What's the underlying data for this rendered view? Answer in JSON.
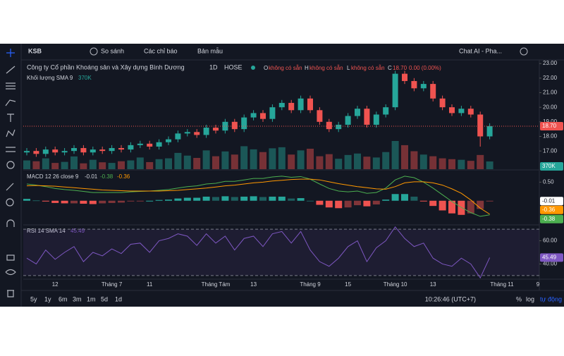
{
  "toolbar": {
    "symbol": "KSB",
    "compare": "So sánh",
    "indicators": "Các chỉ báo",
    "templates": "Bản mẫu",
    "chat": "Chat AI - Pha..."
  },
  "legend": {
    "name": "Công ty Cổ phần Khoáng sản và Xây dựng Bình Dương",
    "interval": "1D",
    "exchange": "HOSE",
    "o_key": "O",
    "o": "không có sẵn",
    "h_key": "H",
    "h": "không có sẵn",
    "l_key": "L",
    "l": "không có sẵn",
    "c_key": "C",
    "c": "18.70",
    "change": "0.00 (0.00%)"
  },
  "bottom_bar": {
    "ranges": [
      "5y",
      "1y",
      "6m",
      "3m",
      "1m",
      "5d",
      "1d"
    ],
    "time": "10:26:46 (UTC+7)",
    "percent": "%",
    "log": "log",
    "auto": "tự động"
  },
  "chart_data": [
    {
      "type": "candlestick",
      "up_color": "#26a69a",
      "down_color": "#ef5350",
      "categories": [
        null,
        null,
        null,
        "12",
        null,
        null,
        null,
        null,
        null,
        "Tháng 7",
        null,
        null,
        null,
        "11",
        null,
        null,
        null,
        null,
        null,
        null,
        "Tháng Tám",
        null,
        null,
        null,
        "13",
        null,
        null,
        null,
        null,
        null,
        "Tháng 9",
        null,
        null,
        null,
        "15",
        null,
        null,
        null,
        null,
        "Tháng 10",
        null,
        null,
        null,
        "13",
        null,
        null,
        null,
        null,
        null,
        null
      ],
      "future_labels": [
        "Tháng 11",
        "9"
      ],
      "open": [
        16.9,
        17.0,
        16.8,
        17.1,
        16.9,
        17.0,
        17.2,
        16.9,
        17.1,
        17.0,
        17.2,
        17.1,
        17.4,
        17.5,
        17.3,
        17.6,
        17.8,
        18.2,
        18.3,
        18.1,
        18.6,
        18.4,
        19.0,
        18.5,
        19.3,
        19.6,
        19.2,
        20.0,
        20.3,
        19.8,
        20.6,
        19.8,
        19.0,
        18.5,
        18.8,
        19.4,
        19.9,
        18.8,
        19.5,
        20.0,
        22.3,
        21.8,
        21.3,
        21.6,
        20.6,
        20.0,
        19.6,
        19.9,
        19.5,
        18.0
      ],
      "close": [
        17.0,
        16.8,
        17.1,
        16.9,
        17.0,
        17.2,
        16.9,
        17.1,
        17.0,
        17.2,
        17.1,
        17.4,
        17.5,
        17.3,
        17.6,
        17.8,
        18.2,
        18.3,
        18.1,
        18.6,
        18.4,
        19.0,
        18.5,
        19.3,
        19.6,
        19.2,
        20.0,
        20.3,
        19.8,
        20.6,
        19.8,
        19.0,
        18.5,
        18.8,
        19.4,
        19.9,
        18.8,
        19.5,
        20.0,
        22.3,
        21.8,
        21.3,
        21.6,
        20.6,
        20.0,
        19.6,
        19.9,
        19.5,
        18.0,
        18.7
      ],
      "high": [
        17.2,
        17.2,
        17.3,
        17.3,
        17.2,
        17.4,
        17.4,
        17.3,
        17.3,
        17.4,
        17.4,
        17.6,
        17.7,
        17.7,
        17.8,
        18.0,
        18.4,
        18.5,
        18.5,
        18.8,
        18.8,
        19.2,
        19.2,
        19.5,
        19.8,
        19.8,
        20.2,
        20.5,
        20.5,
        20.8,
        20.8,
        20.0,
        19.2,
        19.0,
        19.6,
        20.1,
        20.1,
        19.7,
        20.2,
        22.5,
        22.5,
        22.0,
        21.8,
        21.8,
        20.8,
        20.2,
        20.1,
        20.1,
        19.7,
        18.9
      ],
      "low": [
        16.7,
        16.6,
        16.6,
        16.7,
        16.7,
        16.8,
        16.7,
        16.7,
        16.8,
        16.8,
        16.9,
        16.9,
        17.2,
        17.1,
        17.1,
        17.4,
        17.6,
        18.0,
        17.9,
        17.9,
        18.2,
        18.2,
        18.3,
        18.3,
        19.1,
        19.0,
        19.0,
        19.8,
        19.6,
        19.6,
        19.6,
        18.8,
        18.3,
        18.3,
        18.6,
        19.2,
        18.6,
        18.6,
        19.3,
        19.8,
        21.6,
        21.1,
        21.1,
        20.4,
        19.8,
        19.4,
        19.4,
        19.3,
        17.3,
        17.8
      ],
      "ylim": [
        15.75,
        23.2
      ],
      "yticks": [
        {
          "value": 17,
          "label": "17.00"
        },
        {
          "value": 18,
          "label": "18.00"
        },
        {
          "value": 19,
          "label": "19.00"
        },
        {
          "value": 20,
          "label": "20.00"
        },
        {
          "value": 21,
          "label": "21.00"
        },
        {
          "value": 22,
          "label": "22.00"
        },
        {
          "value": 23,
          "label": "23.00"
        }
      ],
      "last_price": {
        "value": 18.7,
        "label": "18.70"
      },
      "volume": {
        "name": "Khối lượng SMA 9",
        "value_label": "370K",
        "values": [
          420000,
          380000,
          520000,
          300000,
          350000,
          610000,
          280000,
          450000,
          330000,
          300000,
          380000,
          420000,
          560000,
          340000,
          480000,
          520000,
          780000,
          650000,
          540000,
          900000,
          620000,
          850000,
          700000,
          1100000,
          950000,
          820000,
          1000000,
          1050000,
          700000,
          900000,
          980000,
          620000,
          720000,
          500000,
          680000,
          750000,
          600000,
          560000,
          820000,
          1350000,
          1150000,
          860000,
          700000,
          620000,
          520000,
          480000,
          450000,
          400000,
          680000,
          370000
        ]
      }
    },
    {
      "type": "macd",
      "name": "MACD 12 26 close 9",
      "ylim": [
        -0.63,
        0.81
      ],
      "yticks": [
        {
          "value": 0.5,
          "label": "0.50"
        }
      ],
      "histogram": {
        "up_color": "#26a69a",
        "down_color": "#ef5350",
        "value_label": "-0.01",
        "values": [
          0.05,
          0.01,
          -0.02,
          -0.06,
          -0.07,
          -0.07,
          -0.08,
          -0.09,
          -0.07,
          -0.06,
          -0.05,
          -0.02,
          -0.01,
          0.0,
          0.02,
          0.03,
          0.06,
          0.08,
          0.08,
          0.11,
          0.1,
          0.12,
          0.1,
          0.11,
          0.12,
          0.1,
          0.11,
          0.11,
          0.06,
          0.07,
          0.0,
          -0.11,
          -0.18,
          -0.2,
          -0.18,
          -0.12,
          -0.15,
          -0.1,
          0.03,
          0.18,
          0.18,
          0.11,
          -0.01,
          -0.14,
          -0.26,
          -0.34,
          -0.38,
          -0.34,
          -0.22,
          -0.01
        ]
      },
      "series": [
        {
          "color": "#4caf50",
          "value_label": "-0.38",
          "values": [
            0.45,
            0.42,
            0.38,
            0.33,
            0.3,
            0.28,
            0.25,
            0.22,
            0.22,
            0.22,
            0.22,
            0.24,
            0.25,
            0.26,
            0.28,
            0.3,
            0.34,
            0.38,
            0.4,
            0.45,
            0.47,
            0.52,
            0.52,
            0.56,
            0.6,
            0.6,
            0.64,
            0.66,
            0.63,
            0.65,
            0.58,
            0.45,
            0.33,
            0.26,
            0.24,
            0.26,
            0.2,
            0.22,
            0.34,
            0.56,
            0.66,
            0.62,
            0.5,
            0.34,
            0.16,
            -0.02,
            -0.18,
            -0.32,
            -0.42,
            -0.38
          ]
        },
        {
          "color": "#ff9800",
          "value_label": "-0.36",
          "values": [
            0.4,
            0.41,
            0.4,
            0.39,
            0.37,
            0.35,
            0.33,
            0.31,
            0.29,
            0.28,
            0.27,
            0.26,
            0.26,
            0.26,
            0.26,
            0.27,
            0.28,
            0.3,
            0.32,
            0.34,
            0.37,
            0.4,
            0.42,
            0.45,
            0.48,
            0.5,
            0.53,
            0.55,
            0.57,
            0.58,
            0.58,
            0.56,
            0.51,
            0.46,
            0.42,
            0.38,
            0.35,
            0.32,
            0.31,
            0.38,
            0.48,
            0.51,
            0.51,
            0.48,
            0.42,
            0.32,
            0.2,
            0.02,
            -0.2,
            -0.36
          ]
        }
      ]
    },
    {
      "type": "line",
      "name": "RSI 14 SMA 14",
      "color": "#7e57c2",
      "value_label": "45.49",
      "ylim": [
        27.5,
        73.1
      ],
      "yticks": [
        {
          "value": 40,
          "label": "40.00"
        },
        {
          "value": 60,
          "label": "60.00"
        }
      ],
      "bands": [
        30,
        70
      ],
      "values": [
        45,
        40,
        52,
        44,
        50,
        55,
        42,
        50,
        47,
        53,
        49,
        57,
        58,
        50,
        60,
        62,
        66,
        64,
        56,
        66,
        58,
        64,
        52,
        62,
        64,
        55,
        66,
        68,
        58,
        68,
        52,
        42,
        38,
        45,
        55,
        60,
        42,
        54,
        60,
        72,
        62,
        55,
        58,
        45,
        40,
        38,
        45,
        40,
        28,
        45.49
      ]
    }
  ]
}
